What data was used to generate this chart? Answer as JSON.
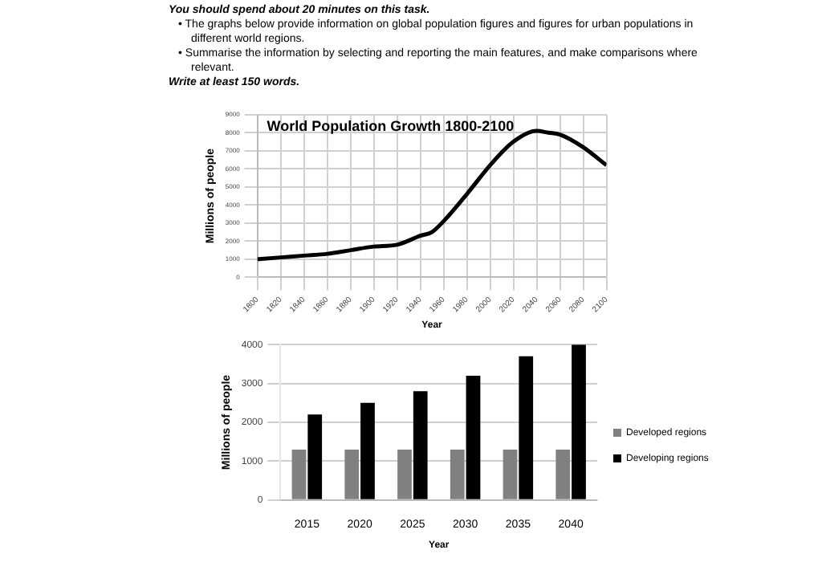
{
  "chart_data": [
    {
      "type": "line",
      "title": "World Population Growth 1800-2100",
      "xlabel": "Year",
      "ylabel": "Millions of people",
      "annotations": [
        "You should spend about 20 minutes on this task.",
        "• The graphs below provide information on global population figures and figures for urban populations in different world regions.",
        "• Summarise the information by selecting and reporting the main features, and make comparisons where relevant.",
        "Write at least 150 words."
      ],
      "x": [
        1800,
        1820,
        1840,
        1860,
        1880,
        1900,
        1920,
        1940,
        1950,
        1960,
        1980,
        2000,
        2020,
        2040,
        2050,
        2060,
        2080,
        2100
      ],
      "series": [
        {
          "color": "#000000",
          "values": [
            1000,
            1100,
            1200,
            1300,
            1500,
            1700,
            1800,
            2300,
            2500,
            3100,
            4600,
            6200,
            7500,
            8100,
            8000,
            7900,
            7200,
            6200
          ]
        }
      ],
      "xlim": [
        1800,
        2100
      ],
      "xticks": [
        1800,
        1820,
        1840,
        1860,
        1880,
        1900,
        1920,
        1940,
        1960,
        1980,
        2000,
        2020,
        2040,
        2060,
        2080,
        2100
      ],
      "ylim": [
        0,
        9000
      ],
      "yticks": [
        0,
        1000,
        2000,
        3000,
        4000,
        5000,
        6000,
        7000,
        8000,
        9000
      ],
      "grid": true,
      "marker": "none",
      "line_style": "solid"
    },
    {
      "type": "bar",
      "xlabel": "Year",
      "ylabel": "Millions of people",
      "categories": [
        "2015",
        "2020",
        "2025",
        "2030",
        "2035",
        "2040"
      ],
      "series": [
        {
          "name": "Developed regions",
          "color": "#808080",
          "values": [
            1300,
            1300,
            1300,
            1300,
            1300,
            1300
          ]
        },
        {
          "name": "Developing regions",
          "color": "#000000",
          "values": [
            2200,
            2500,
            2800,
            3200,
            3700,
            4000
          ]
        }
      ],
      "ylim": [
        0,
        4000
      ],
      "yticks": [
        0,
        1000,
        2000,
        3000,
        4000
      ],
      "grid": "y",
      "legend": "right"
    }
  ]
}
